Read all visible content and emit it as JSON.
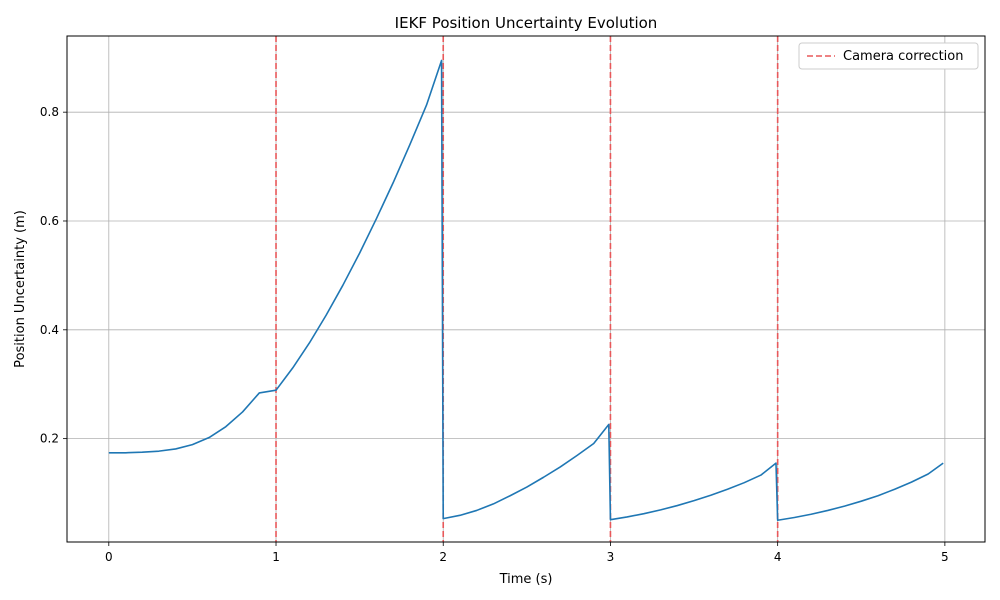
{
  "chart_data": {
    "type": "line",
    "title": "IEKF Position Uncertainty Evolution",
    "xlabel": "Time (s)",
    "ylabel": "Position Uncertainty (m)",
    "xlim": [
      -0.25,
      5.24
    ],
    "ylim": [
      0.01,
      0.94
    ],
    "xticks": [
      0,
      1,
      2,
      3,
      4,
      5
    ],
    "xtick_labels": [
      "0",
      "1",
      "2",
      "3",
      "4",
      "5"
    ],
    "yticks": [
      0.2,
      0.4,
      0.6,
      0.8
    ],
    "ytick_labels": [
      "0.2",
      "0.4",
      "0.6",
      "0.8"
    ],
    "grid": true,
    "legend": {
      "position": "top-right"
    },
    "series": [
      {
        "color": "#1f77b4",
        "segments": [
          {
            "x": [
              0,
              0.1,
              0.2,
              0.3,
              0.4,
              0.5,
              0.6,
              0.7,
              0.8,
              0.9,
              1.0,
              1.1,
              1.2,
              1.3,
              1.4,
              1.5,
              1.6,
              1.7,
              1.8,
              1.9,
              1.99
            ],
            "y": [
              0.174,
              0.174,
              0.175,
              0.177,
              0.181,
              0.189,
              0.202,
              0.222,
              0.249,
              0.284,
              0.289,
              0.33,
              0.376,
              0.427,
              0.482,
              0.541,
              0.604,
              0.67,
              0.74,
              0.813,
              0.895
            ]
          },
          {
            "x": [
              2.0,
              2.1,
              2.2,
              2.3,
              2.4,
              2.5,
              2.6,
              2.7,
              2.8,
              2.9,
              2.99
            ],
            "y": [
              0.053,
              0.059,
              0.068,
              0.08,
              0.095,
              0.111,
              0.129,
              0.148,
              0.169,
              0.191,
              0.226
            ]
          },
          {
            "x": [
              3.0,
              3.1,
              3.2,
              3.3,
              3.4,
              3.5,
              3.6,
              3.7,
              3.8,
              3.9,
              3.99
            ],
            "y": [
              0.051,
              0.056,
              0.062,
              0.069,
              0.077,
              0.086,
              0.096,
              0.107,
              0.119,
              0.133,
              0.155
            ]
          },
          {
            "x": [
              4.0,
              4.1,
              4.2,
              4.3,
              4.4,
              4.5,
              4.6,
              4.7,
              4.8,
              4.9,
              4.99
            ],
            "y": [
              0.05,
              0.055,
              0.061,
              0.068,
              0.076,
              0.085,
              0.095,
              0.107,
              0.12,
              0.135,
              0.155
            ]
          }
        ]
      },
      {
        "name": "Camera correction",
        "type": "vline",
        "style": "dashed",
        "color": "#e8585a",
        "x": [
          1,
          2,
          3,
          4
        ]
      }
    ]
  }
}
